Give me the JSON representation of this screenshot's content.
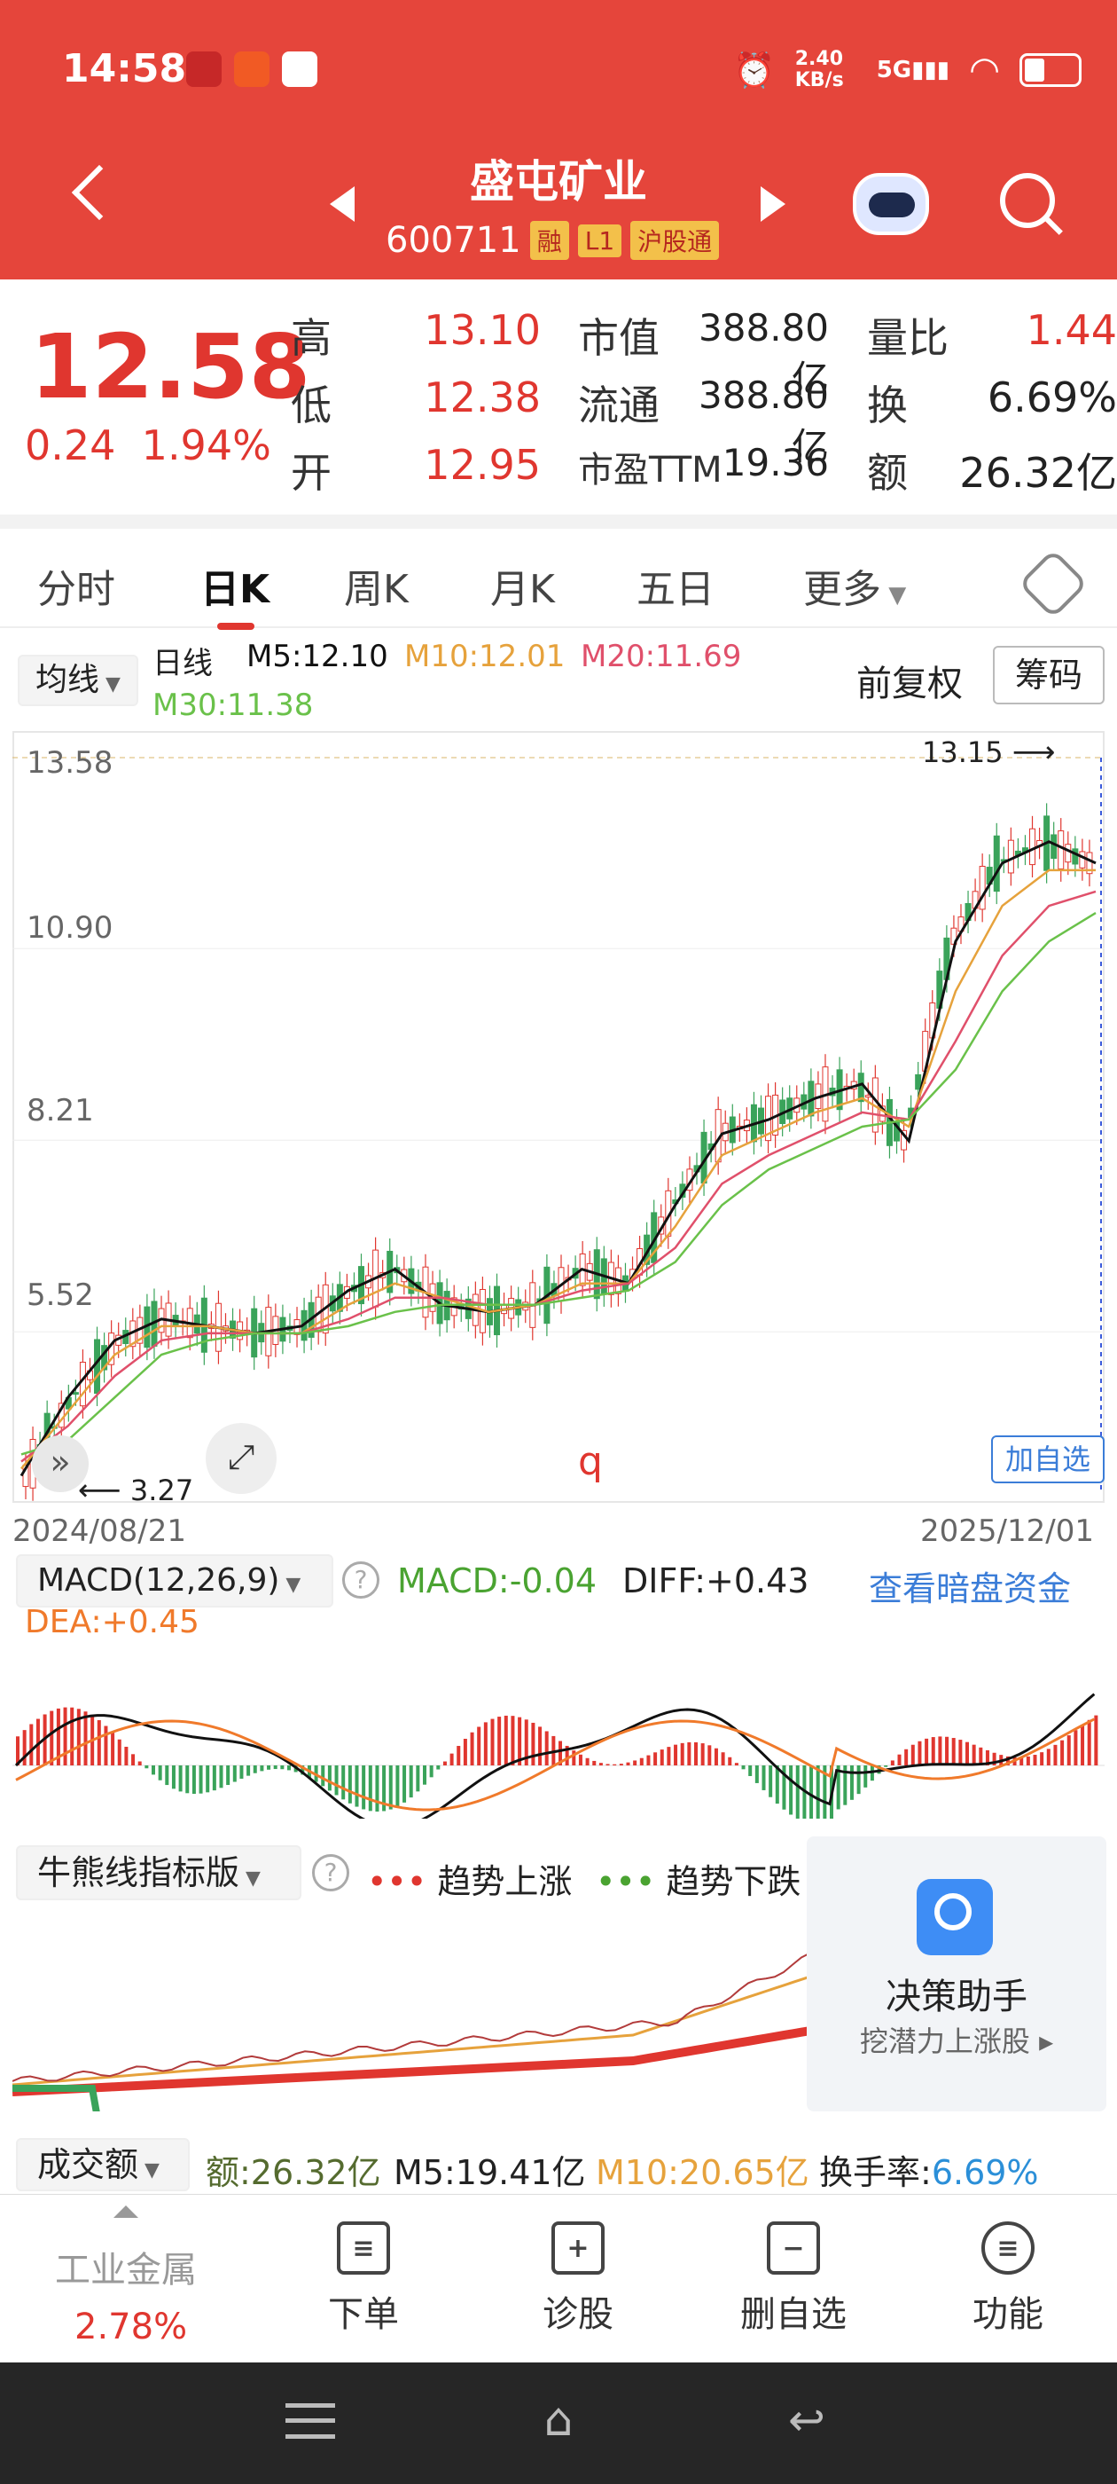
{
  "status": {
    "time": "14:58",
    "net_speed": "2.40 KB/s",
    "net_type": "5G"
  },
  "header": {
    "title": "盛屯矿业",
    "code": "600711",
    "tags": [
      "融",
      "L1",
      "沪股通"
    ]
  },
  "quote": {
    "price": "12.58",
    "change": "0.24",
    "change_pct": "1.94%",
    "rows": [
      {
        "l1": "高",
        "v1": "13.10",
        "l2": "市值",
        "v2": "388.80亿",
        "l3": "量比",
        "v3": "1.44"
      },
      {
        "l1": "低",
        "v1": "12.38",
        "l2": "流通",
        "v2": "388.80亿",
        "l3": "换",
        "v3": "6.69%"
      },
      {
        "l1": "开",
        "v1": "12.95",
        "l2": "市盈TTM",
        "v2": "19.36",
        "l3": "额",
        "v3": "26.32亿"
      }
    ]
  },
  "tabs": [
    "分时",
    "日K",
    "周K",
    "月K",
    "五日",
    "更多"
  ],
  "ma": {
    "selector": "均线",
    "type": "日线",
    "m5": "M5:12.10",
    "m10": "M10:12.01",
    "m20": "M20:11.69",
    "m30": "M30:11.38",
    "adjust": "前复权",
    "chips": "筹码"
  },
  "kchart": {
    "y_ticks": [
      "13.58",
      "10.90",
      "8.21",
      "5.52"
    ],
    "high_label": "13.15",
    "low_label": "3.27",
    "start_date": "2024/08/21",
    "end_date": "2025/12/01",
    "add_watch": "加自选",
    "marker_q": "q"
  },
  "macd": {
    "title": "MACD(12,26,9)",
    "macd": "MACD:-0.04",
    "diff": "DIFF:+0.43",
    "dea": "DEA:+0.45",
    "link": "查看暗盘资金"
  },
  "bull": {
    "title": "牛熊线指标版",
    "up": "趋势上涨",
    "down": "趋势下跌",
    "assistant": "决策助手",
    "assistant_sub": "挖潜力上涨股"
  },
  "volume": {
    "title": "成交额",
    "amount": "额:26.32亿",
    "m5": "M5:19.41亿",
    "m10": "M10:20.65亿",
    "turnover_label": "换手率:",
    "turnover": "6.69%"
  },
  "bottom": {
    "sector": "工业金属",
    "sector_pct": "2.78%",
    "items": [
      "下单",
      "诊股",
      "删自选",
      "功能"
    ]
  },
  "colors": {
    "red": "#e5453b",
    "green": "#4aa331",
    "orange": "#f09a36",
    "blue": "#3b7dd8"
  },
  "chart_data": {
    "type": "line",
    "title": "",
    "x_range": [
      "2024/08/21",
      "2025/12/01"
    ],
    "ylim": [
      3.27,
      13.58
    ],
    "series": [
      {
        "name": "M5",
        "values": [
          3.5,
          4.6,
          5.4,
          5.7,
          5.6,
          5.5,
          5.6,
          6.1,
          6.4,
          5.9,
          5.8,
          5.9,
          6.4,
          6.2,
          7.3,
          8.3,
          8.5,
          8.8,
          9.0,
          8.2,
          11.0,
          12.1,
          12.4,
          12.1
        ]
      },
      {
        "name": "M10",
        "values": [
          3.6,
          4.4,
          5.2,
          5.6,
          5.6,
          5.5,
          5.5,
          5.9,
          6.2,
          6.0,
          5.8,
          5.9,
          6.2,
          6.2,
          7.0,
          8.0,
          8.3,
          8.6,
          8.8,
          8.4,
          10.3,
          11.5,
          12.0,
          12.0
        ]
      },
      {
        "name": "M20",
        "values": [
          3.7,
          4.2,
          4.9,
          5.4,
          5.5,
          5.5,
          5.5,
          5.7,
          6.0,
          6.0,
          5.9,
          5.9,
          6.1,
          6.2,
          6.7,
          7.6,
          8.0,
          8.3,
          8.6,
          8.5,
          9.6,
          10.8,
          11.5,
          11.7
        ]
      },
      {
        "name": "M30",
        "values": [
          3.8,
          4.0,
          4.6,
          5.2,
          5.4,
          5.5,
          5.5,
          5.6,
          5.8,
          5.9,
          5.9,
          5.9,
          6.0,
          6.1,
          6.5,
          7.3,
          7.8,
          8.1,
          8.4,
          8.5,
          9.2,
          10.3,
          11.0,
          11.4
        ]
      }
    ]
  }
}
